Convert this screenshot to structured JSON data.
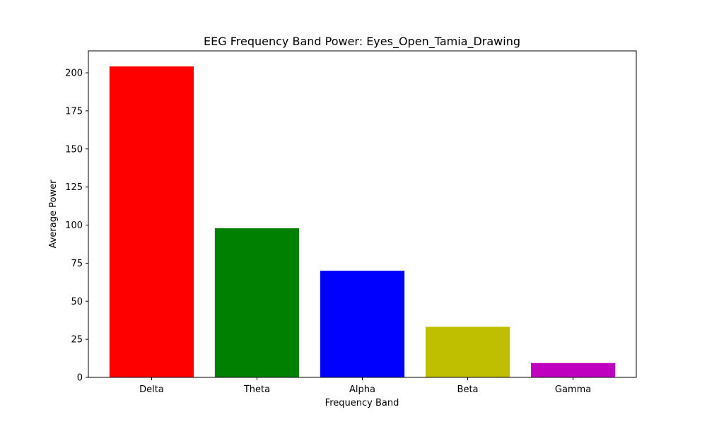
{
  "chart_data": {
    "type": "bar",
    "title": "EEG Frequency Band Power: Eyes_Open_Tamia_Drawing",
    "xlabel": "Frequency Band",
    "ylabel": "Average Power",
    "categories": [
      "Delta",
      "Theta",
      "Alpha",
      "Beta",
      "Gamma"
    ],
    "values": [
      204.2,
      97.9,
      70.0,
      33.2,
      9.4
    ],
    "colors": [
      "#ff0000",
      "#008000",
      "#0000ff",
      "#bfbf00",
      "#bf00bf"
    ],
    "ylim": [
      0,
      214.4
    ],
    "yticks": [
      0,
      25,
      50,
      75,
      100,
      125,
      150,
      175,
      200
    ],
    "grid": false,
    "legend": "none"
  }
}
